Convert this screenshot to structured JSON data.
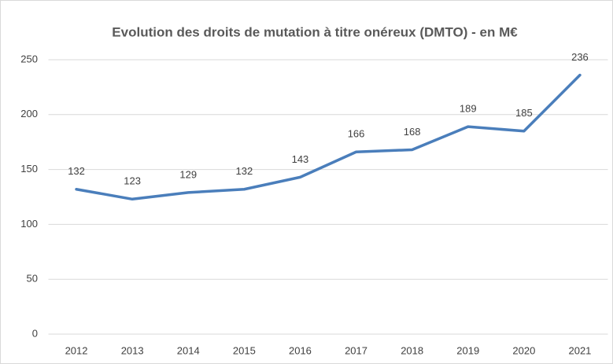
{
  "chart_data": {
    "type": "line",
    "title": "Evolution des droits de mutation à titre onéreux (DMTO) - en M€",
    "categories": [
      "2012",
      "2013",
      "2014",
      "2015",
      "2016",
      "2017",
      "2018",
      "2019",
      "2020",
      "2021"
    ],
    "values": [
      132,
      123,
      129,
      132,
      143,
      166,
      168,
      189,
      185,
      236
    ],
    "color": "#4a7ebb",
    "ylim": [
      0,
      250
    ],
    "yticks": [
      0,
      50,
      100,
      150,
      200,
      250
    ],
    "grid": true
  }
}
